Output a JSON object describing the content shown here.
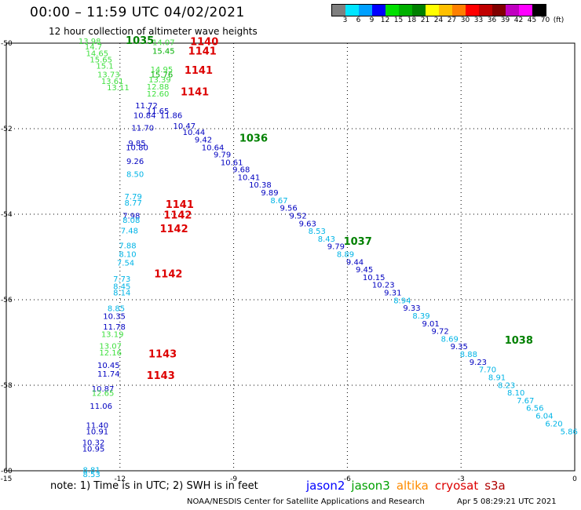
{
  "header": {
    "title": "00:00 – 11:59 UTC 04/02/2021",
    "subtitle": "12 hour collection of altimeter wave heights"
  },
  "legend": {
    "colors": [
      "#7f7f7f",
      "#00e5ff",
      "#00a0ff",
      "#0000ff",
      "#00e000",
      "#00b000",
      "#008000",
      "#ffff00",
      "#ffc000",
      "#ff8000",
      "#ff0000",
      "#c00000",
      "#800000",
      "#c000c0",
      "#ff00ff",
      "#000000"
    ],
    "labels": [
      "3",
      "6",
      "9",
      "12",
      "15",
      "18",
      "21",
      "24",
      "27",
      "30",
      "33",
      "36",
      "39",
      "42",
      "45",
      "70",
      "(ft)"
    ]
  },
  "chart_data": {
    "type": "scatter",
    "xlim": [
      -15,
      0
    ],
    "ylim": [
      -60,
      -50
    ],
    "x_ticks": [
      "-15",
      "-12",
      "-9",
      "-6",
      "-3",
      "0"
    ],
    "y_ticks": [
      "-50",
      "-52",
      "-54",
      "-56",
      "-58",
      "-60"
    ],
    "colors": {
      "c2": "#0000c0",
      "c3": "#00b000",
      "c4": "#ff8000",
      "c5": "#dd0000",
      "c_lb": "#00b4e6",
      "c_lg": "#40e040"
    },
    "track_labels": [
      {
        "text": "1035",
        "x": -11.85,
        "y": -50.02,
        "color": "#008000"
      },
      {
        "text": "1140",
        "x": -10.15,
        "y": -50.05,
        "color": "#dd0000"
      },
      {
        "text": "1141",
        "x": -10.2,
        "y": -50.27,
        "color": "#dd0000"
      },
      {
        "text": "1141",
        "x": -10.3,
        "y": -50.72,
        "color": "#dd0000"
      },
      {
        "text": "1141",
        "x": -10.4,
        "y": -51.22,
        "color": "#dd0000"
      },
      {
        "text": "1036",
        "x": -8.85,
        "y": -52.3,
        "color": "#008000"
      },
      {
        "text": "1141",
        "x": -10.8,
        "y": -53.85,
        "color": "#dd0000"
      },
      {
        "text": "1142",
        "x": -10.85,
        "y": -54.1,
        "color": "#dd0000"
      },
      {
        "text": "1142",
        "x": -10.95,
        "y": -54.42,
        "color": "#dd0000"
      },
      {
        "text": "1037",
        "x": -6.1,
        "y": -54.72,
        "color": "#008000"
      },
      {
        "text": "1142",
        "x": -11.1,
        "y": -55.48,
        "color": "#dd0000"
      },
      {
        "text": "1038",
        "x": -1.85,
        "y": -57.03,
        "color": "#008000"
      },
      {
        "text": "1143",
        "x": -11.25,
        "y": -57.35,
        "color": "#dd0000"
      },
      {
        "text": "1143",
        "x": -11.3,
        "y": -57.85,
        "color": "#dd0000"
      }
    ],
    "points": [
      {
        "x": -12.8,
        "y": -50.02,
        "v": "13.98",
        "c": "lg"
      },
      {
        "x": -12.7,
        "y": -50.15,
        "v": "14.7",
        "c": "lg"
      },
      {
        "x": -12.6,
        "y": -50.3,
        "v": "14.65",
        "c": "lg"
      },
      {
        "x": -12.5,
        "y": -50.45,
        "v": "15.65",
        "c": "lg"
      },
      {
        "x": -12.4,
        "y": -50.6,
        "v": "15.1",
        "c": "lg"
      },
      {
        "x": -12.3,
        "y": -50.8,
        "v": "13.73",
        "c": "lg"
      },
      {
        "x": -12.2,
        "y": -50.95,
        "v": "13.61",
        "c": "lg"
      },
      {
        "x": -12.05,
        "y": -51.1,
        "v": "13.11",
        "c": "lg"
      },
      {
        "x": -10.85,
        "y": -50.05,
        "v": "14.07",
        "c": "lg"
      },
      {
        "x": -10.85,
        "y": -50.25,
        "v": "15.45",
        "c": "c3"
      },
      {
        "x": -10.9,
        "y": -50.68,
        "v": "14.95",
        "c": "lg"
      },
      {
        "x": -10.9,
        "y": -50.8,
        "v": "15.76",
        "c": "c3"
      },
      {
        "x": -10.95,
        "y": -50.92,
        "v": "13.39",
        "c": "lg"
      },
      {
        "x": -11.0,
        "y": -51.08,
        "v": "12.88",
        "c": "lg"
      },
      {
        "x": -11.0,
        "y": -51.25,
        "v": "12.60",
        "c": "lg"
      },
      {
        "x": -11.3,
        "y": -51.52,
        "v": "11.72",
        "c": "c2"
      },
      {
        "x": -11.0,
        "y": -51.65,
        "v": "11.65",
        "c": "c2"
      },
      {
        "x": -11.35,
        "y": -51.75,
        "v": "10.84",
        "c": "c2"
      },
      {
        "x": -10.65,
        "y": -51.75,
        "v": "11.86",
        "c": "c2"
      },
      {
        "x": -11.4,
        "y": -52.05,
        "v": "11.70",
        "c": "c2"
      },
      {
        "x": -10.3,
        "y": -52.0,
        "v": "10.47",
        "c": "c2"
      },
      {
        "x": -10.05,
        "y": -52.15,
        "v": "10.44",
        "c": "c2"
      },
      {
        "x": -9.8,
        "y": -52.32,
        "v": "9.42",
        "c": "c2"
      },
      {
        "x": -9.55,
        "y": -52.5,
        "v": "10.64",
        "c": "c2"
      },
      {
        "x": -9.3,
        "y": -52.67,
        "v": "9.79",
        "c": "c2"
      },
      {
        "x": -9.05,
        "y": -52.85,
        "v": "10.61",
        "c": "c2"
      },
      {
        "x": -8.8,
        "y": -53.02,
        "v": "9.68",
        "c": "c2"
      },
      {
        "x": -8.6,
        "y": -53.2,
        "v": "10.41",
        "c": "c2"
      },
      {
        "x": -8.3,
        "y": -53.38,
        "v": "10.38",
        "c": "c2"
      },
      {
        "x": -8.05,
        "y": -53.56,
        "v": "9.89",
        "c": "c2"
      },
      {
        "x": -7.8,
        "y": -53.74,
        "v": "8.67",
        "c": "c_lb"
      },
      {
        "x": -7.55,
        "y": -53.92,
        "v": "9.56",
        "c": "c2"
      },
      {
        "x": -7.3,
        "y": -54.1,
        "v": "9.52",
        "c": "c2"
      },
      {
        "x": -7.05,
        "y": -54.28,
        "v": "9.63",
        "c": "c2"
      },
      {
        "x": -6.8,
        "y": -54.46,
        "v": "8.53",
        "c": "c_lb"
      },
      {
        "x": -6.55,
        "y": -54.64,
        "v": "8.43",
        "c": "c_lb"
      },
      {
        "x": -6.3,
        "y": -54.82,
        "v": "9.79",
        "c": "c2"
      },
      {
        "x": -6.05,
        "y": -55.0,
        "v": "8.89",
        "c": "c_lb"
      },
      {
        "x": -5.8,
        "y": -55.18,
        "v": "9.44",
        "c": "c2"
      },
      {
        "x": -5.55,
        "y": -55.36,
        "v": "9.45",
        "c": "c2"
      },
      {
        "x": -5.3,
        "y": -55.54,
        "v": "10.15",
        "c": "c2"
      },
      {
        "x": -5.05,
        "y": -55.72,
        "v": "10.23",
        "c": "c2"
      },
      {
        "x": -4.8,
        "y": -55.9,
        "v": "9.31",
        "c": "c2"
      },
      {
        "x": -4.55,
        "y": -56.08,
        "v": "8.94",
        "c": "c_lb"
      },
      {
        "x": -4.3,
        "y": -56.26,
        "v": "9.33",
        "c": "c2"
      },
      {
        "x": -4.05,
        "y": -56.44,
        "v": "8.39",
        "c": "c_lb"
      },
      {
        "x": -3.8,
        "y": -56.62,
        "v": "9.01",
        "c": "c2"
      },
      {
        "x": -3.55,
        "y": -56.8,
        "v": "9.72",
        "c": "c2"
      },
      {
        "x": -3.3,
        "y": -56.98,
        "v": "8.69",
        "c": "c_lb"
      },
      {
        "x": -3.05,
        "y": -57.16,
        "v": "9.35",
        "c": "c2"
      },
      {
        "x": -2.8,
        "y": -57.34,
        "v": "8.88",
        "c": "c_lb"
      },
      {
        "x": -2.55,
        "y": -57.52,
        "v": "9.23",
        "c": "c2"
      },
      {
        "x": -2.3,
        "y": -57.7,
        "v": "7.70",
        "c": "c_lb"
      },
      {
        "x": -2.05,
        "y": -57.88,
        "v": "8.91",
        "c": "c_lb"
      },
      {
        "x": -1.8,
        "y": -58.06,
        "v": "8.23",
        "c": "c_lb"
      },
      {
        "x": -1.55,
        "y": -58.24,
        "v": "8.10",
        "c": "c_lb"
      },
      {
        "x": -1.3,
        "y": -58.42,
        "v": "7.67",
        "c": "c_lb"
      },
      {
        "x": -1.05,
        "y": -58.6,
        "v": "6.56",
        "c": "c_lb"
      },
      {
        "x": -0.8,
        "y": -58.78,
        "v": "6.04",
        "c": "c_lb"
      },
      {
        "x": -0.55,
        "y": -58.96,
        "v": "6.20",
        "c": "c_lb"
      },
      {
        "x": -0.15,
        "y": -59.15,
        "v": "5.86",
        "c": "c_lb"
      },
      {
        "x": -11.55,
        "y": -52.4,
        "v": "9.85",
        "c": "c2"
      },
      {
        "x": -11.55,
        "y": -52.5,
        "v": "10.80",
        "c": "c2"
      },
      {
        "x": -11.6,
        "y": -52.83,
        "v": "9.26",
        "c": "c2"
      },
      {
        "x": -11.6,
        "y": -53.13,
        "v": "8.50",
        "c": "c_lb"
      },
      {
        "x": -11.65,
        "y": -53.65,
        "v": "7.79",
        "c": "c_lb"
      },
      {
        "x": -11.65,
        "y": -53.8,
        "v": "8.77",
        "c": "c_lb"
      },
      {
        "x": -11.7,
        "y": -54.1,
        "v": "7.98",
        "c": "c2"
      },
      {
        "x": -11.7,
        "y": -54.2,
        "v": "8.08",
        "c": "c_lb"
      },
      {
        "x": -11.75,
        "y": -54.45,
        "v": "7.48",
        "c": "c_lb"
      },
      {
        "x": -11.8,
        "y": -54.8,
        "v": "7.88",
        "c": "c_lb"
      },
      {
        "x": -11.8,
        "y": -55.0,
        "v": "8.10",
        "c": "c_lb"
      },
      {
        "x": -11.85,
        "y": -55.2,
        "v": "7.54",
        "c": "c_lb"
      },
      {
        "x": -11.95,
        "y": -55.58,
        "v": "7.73",
        "c": "c_lb"
      },
      {
        "x": -11.95,
        "y": -55.75,
        "v": "8.45",
        "c": "c_lb"
      },
      {
        "x": -11.95,
        "y": -55.9,
        "v": "8.14",
        "c": "c_lb"
      },
      {
        "x": -12.1,
        "y": -56.27,
        "v": "8.85",
        "c": "c_lb"
      },
      {
        "x": -12.15,
        "y": -56.45,
        "v": "10.35",
        "c": "c2"
      },
      {
        "x": -12.15,
        "y": -56.7,
        "v": "11.78",
        "c": "c2"
      },
      {
        "x": -12.2,
        "y": -56.87,
        "v": "13.19",
        "c": "lg"
      },
      {
        "x": -12.25,
        "y": -57.15,
        "v": "13.07",
        "c": "lg"
      },
      {
        "x": -12.25,
        "y": -57.3,
        "v": "12.16",
        "c": "lg"
      },
      {
        "x": -12.3,
        "y": -57.6,
        "v": "10.45",
        "c": "c2"
      },
      {
        "x": -12.3,
        "y": -57.8,
        "v": "11.74",
        "c": "c2"
      },
      {
        "x": -12.45,
        "y": -58.15,
        "v": "10.87",
        "c": "c2"
      },
      {
        "x": -12.45,
        "y": -58.25,
        "v": "12.65",
        "c": "lg"
      },
      {
        "x": -12.5,
        "y": -58.55,
        "v": "11.06",
        "c": "c2"
      },
      {
        "x": -12.6,
        "y": -59.0,
        "v": "11.40",
        "c": "c2"
      },
      {
        "x": -12.6,
        "y": -59.15,
        "v": "10.91",
        "c": "c2"
      },
      {
        "x": -12.7,
        "y": -59.4,
        "v": "10.32",
        "c": "c2"
      },
      {
        "x": -12.7,
        "y": -59.55,
        "v": "10.95",
        "c": "c2"
      },
      {
        "x": -12.75,
        "y": -60.05,
        "v": "8.81",
        "c": "c_lb"
      },
      {
        "x": -12.75,
        "y": -60.15,
        "v": "8.53",
        "c": "c_lb"
      }
    ]
  },
  "footer": {
    "note": "note:  1) Time is in UTC;  2) SWH is in feet",
    "satellites": [
      {
        "name": "jason2",
        "color": "#0000ff"
      },
      {
        "name": "jason3",
        "color": "#00a000"
      },
      {
        "name": "altika",
        "color": "#ff8c00"
      },
      {
        "name": "cryosat",
        "color": "#dd0000"
      },
      {
        "name": "s3a",
        "color": "#b00000"
      }
    ],
    "credit": "NOAA/NESDIS Center for Satellite Applications and Research",
    "timestamp": "Apr  5 08:29:21 UTC 2021"
  }
}
